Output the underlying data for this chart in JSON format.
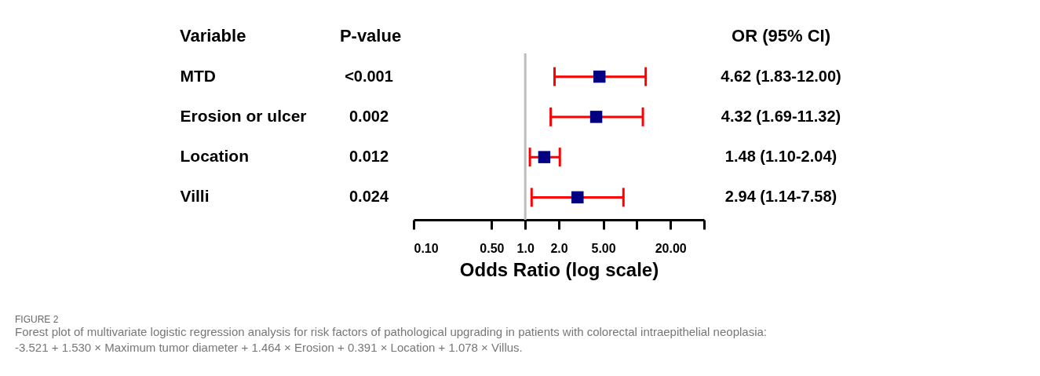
{
  "chart_data": {
    "type": "scatter",
    "orientation": "horizontal",
    "categories": [
      "MTD",
      "Erosion or ulcer",
      "Location",
      "Villi"
    ],
    "color": "#000080",
    "values": [
      4.62,
      4.32,
      1.48,
      2.94
    ],
    "errors": [
      [
        1.83,
        12.0
      ],
      [
        1.69,
        11.32
      ],
      [
        1.1,
        2.04
      ],
      [
        1.14,
        7.58
      ]
    ],
    "value_labels": [
      "4.62 (1.83-12.00)",
      "4.32 (1.69-11.32)",
      "1.48 (1.10-2.04)",
      "2.94 (1.14-7.58)"
    ],
    "xlabel": "Odds Ratio (log scale)",
    "log": "x",
    "xlim": [
      0.1,
      40
    ],
    "xticks": [
      {
        "value": 0.1,
        "label": "0.10"
      },
      {
        "value": 0.5,
        "label": "0.50"
      },
      {
        "value": 1,
        "label": "1.0"
      },
      {
        "value": 2,
        "label": "2.0"
      },
      {
        "value": 5,
        "label": "5.00"
      },
      {
        "value": 10,
        "label": null
      },
      {
        "value": 20,
        "label": "20.00"
      },
      {
        "value": 40,
        "label": null
      }
    ],
    "marker": "square",
    "ref_lines": [
      {
        "axis": "x",
        "value": 1,
        "color": "#bebebe"
      }
    ],
    "annotations": [
      "Variable",
      "P-value",
      "OR (95% CI)",
      "<0.001",
      "0.002",
      "0.012",
      "0.024",
      "FIGURE 2",
      "Forest plot of multivariate logistic regression analysis for risk factors of pathological upgrading in patients with colorectal intraepithelial neoplasia:",
      "-3.521 + 1.530 × Maximum tumor diameter + 1.464 × Erosion + 0.391 × Location + 1.078 × Villus."
    ]
  }
}
